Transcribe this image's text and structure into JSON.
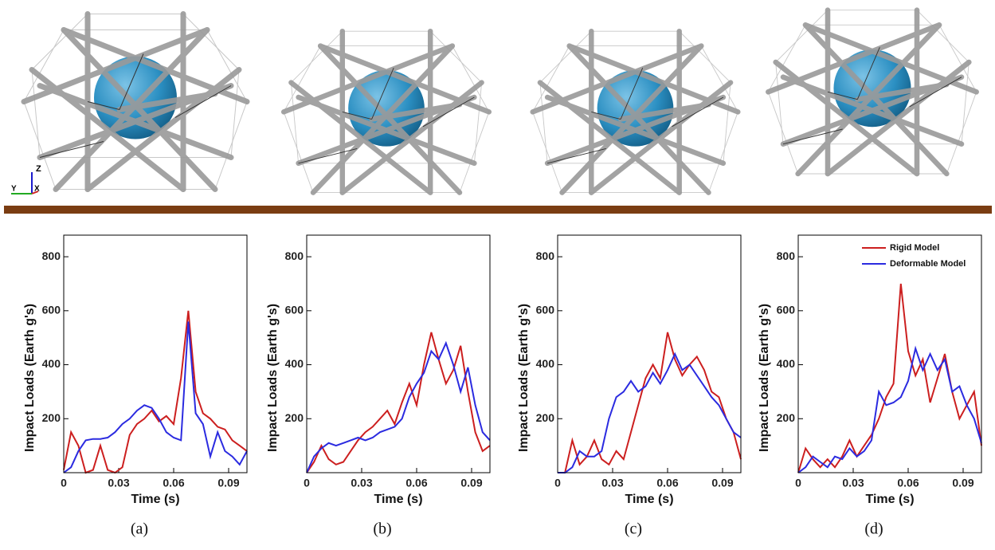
{
  "render": {
    "triad": {
      "z": "Z",
      "y": "Y",
      "x": "X"
    }
  },
  "chart_data": [
    {
      "type": "line",
      "caption": "(a)",
      "xlabel": "Time (s)",
      "ylabel": "Impact Loads (Earth g's)",
      "x": [
        0,
        0.004,
        0.008,
        0.012,
        0.016,
        0.02,
        0.024,
        0.028,
        0.032,
        0.036,
        0.04,
        0.044,
        0.048,
        0.052,
        0.056,
        0.06,
        0.064,
        0.068,
        0.072,
        0.076,
        0.08,
        0.084,
        0.088,
        0.092,
        0.096,
        0.1
      ],
      "xlim": [
        0,
        0.1
      ],
      "xticks": [
        0,
        0.03,
        0.06,
        0.09
      ],
      "ylim": [
        0,
        880
      ],
      "yticks": [
        200,
        400,
        600,
        800
      ],
      "series": [
        {
          "name": "Rigid Model",
          "color": "#cc1f1f",
          "values": [
            10,
            150,
            100,
            0,
            10,
            100,
            10,
            0,
            20,
            140,
            180,
            200,
            230,
            190,
            210,
            180,
            350,
            600,
            300,
            220,
            200,
            170,
            160,
            120,
            100,
            80
          ]
        },
        {
          "name": "Deformable Model",
          "color": "#2b2be0",
          "values": [
            0,
            20,
            80,
            120,
            125,
            125,
            130,
            150,
            180,
            200,
            230,
            250,
            240,
            200,
            150,
            130,
            120,
            560,
            220,
            180,
            60,
            150,
            80,
            60,
            30,
            80
          ]
        }
      ]
    },
    {
      "type": "line",
      "caption": "(b)",
      "xlabel": "Time (s)",
      "ylabel": "Impact Loads (Earth g's)",
      "x": [
        0,
        0.004,
        0.008,
        0.012,
        0.016,
        0.02,
        0.024,
        0.028,
        0.032,
        0.036,
        0.04,
        0.044,
        0.048,
        0.052,
        0.056,
        0.06,
        0.064,
        0.068,
        0.072,
        0.076,
        0.08,
        0.084,
        0.088,
        0.092,
        0.096,
        0.1
      ],
      "xlim": [
        0,
        0.1
      ],
      "xticks": [
        0,
        0.03,
        0.06,
        0.09
      ],
      "ylim": [
        0,
        880
      ],
      "yticks": [
        200,
        400,
        600,
        800
      ],
      "series": [
        {
          "name": "Rigid Model",
          "color": "#cc1f1f",
          "values": [
            0,
            40,
            100,
            50,
            30,
            40,
            80,
            120,
            150,
            170,
            200,
            230,
            180,
            260,
            330,
            250,
            400,
            520,
            420,
            330,
            380,
            470,
            300,
            150,
            80,
            100
          ]
        },
        {
          "name": "Deformable Model",
          "color": "#2b2be0",
          "values": [
            0,
            60,
            90,
            110,
            100,
            110,
            120,
            130,
            120,
            130,
            150,
            160,
            170,
            200,
            280,
            330,
            370,
            450,
            420,
            480,
            400,
            300,
            390,
            250,
            150,
            120
          ]
        }
      ]
    },
    {
      "type": "line",
      "caption": "(c)",
      "xlabel": "Time (s)",
      "ylabel": "Impact Loads (Earth g's)",
      "x": [
        0,
        0.004,
        0.008,
        0.012,
        0.016,
        0.02,
        0.024,
        0.028,
        0.032,
        0.036,
        0.04,
        0.044,
        0.048,
        0.052,
        0.056,
        0.06,
        0.064,
        0.068,
        0.072,
        0.076,
        0.08,
        0.084,
        0.088,
        0.092,
        0.096,
        0.1
      ],
      "xlim": [
        0,
        0.1
      ],
      "xticks": [
        0,
        0.03,
        0.06,
        0.09
      ],
      "ylim": [
        0,
        880
      ],
      "yticks": [
        200,
        400,
        600,
        800
      ],
      "series": [
        {
          "name": "Rigid Model",
          "color": "#cc1f1f",
          "values": [
            0,
            0,
            120,
            30,
            60,
            120,
            50,
            30,
            80,
            50,
            150,
            250,
            350,
            400,
            350,
            520,
            420,
            360,
            400,
            430,
            380,
            300,
            280,
            200,
            150,
            50
          ]
        },
        {
          "name": "Deformable Model",
          "color": "#2b2be0",
          "values": [
            0,
            0,
            20,
            80,
            60,
            60,
            80,
            200,
            280,
            300,
            340,
            300,
            320,
            370,
            330,
            380,
            440,
            380,
            400,
            360,
            320,
            280,
            250,
            200,
            150,
            130
          ]
        }
      ]
    },
    {
      "type": "line",
      "caption": "(d)",
      "xlabel": "Time (s)",
      "ylabel": "Impact Loads (Earth g's)",
      "legend": "upper right",
      "x": [
        0,
        0.004,
        0.008,
        0.012,
        0.016,
        0.02,
        0.024,
        0.028,
        0.032,
        0.036,
        0.04,
        0.044,
        0.048,
        0.052,
        0.056,
        0.06,
        0.064,
        0.068,
        0.072,
        0.076,
        0.08,
        0.084,
        0.088,
        0.092,
        0.096,
        0.1
      ],
      "xlim": [
        0,
        0.1
      ],
      "xticks": [
        0,
        0.03,
        0.06,
        0.09
      ],
      "ylim": [
        0,
        880
      ],
      "yticks": [
        200,
        400,
        600,
        800
      ],
      "series": [
        {
          "name": "Rigid Model",
          "color": "#cc1f1f",
          "values": [
            0,
            90,
            50,
            20,
            50,
            20,
            60,
            120,
            60,
            100,
            140,
            200,
            280,
            330,
            700,
            450,
            360,
            420,
            260,
            350,
            440,
            300,
            200,
            250,
            300,
            100
          ]
        },
        {
          "name": "Deformable Model",
          "color": "#2b2be0",
          "values": [
            0,
            20,
            60,
            40,
            20,
            60,
            50,
            90,
            60,
            80,
            120,
            300,
            250,
            260,
            280,
            340,
            460,
            380,
            440,
            380,
            420,
            300,
            320,
            250,
            200,
            110
          ]
        }
      ]
    }
  ]
}
